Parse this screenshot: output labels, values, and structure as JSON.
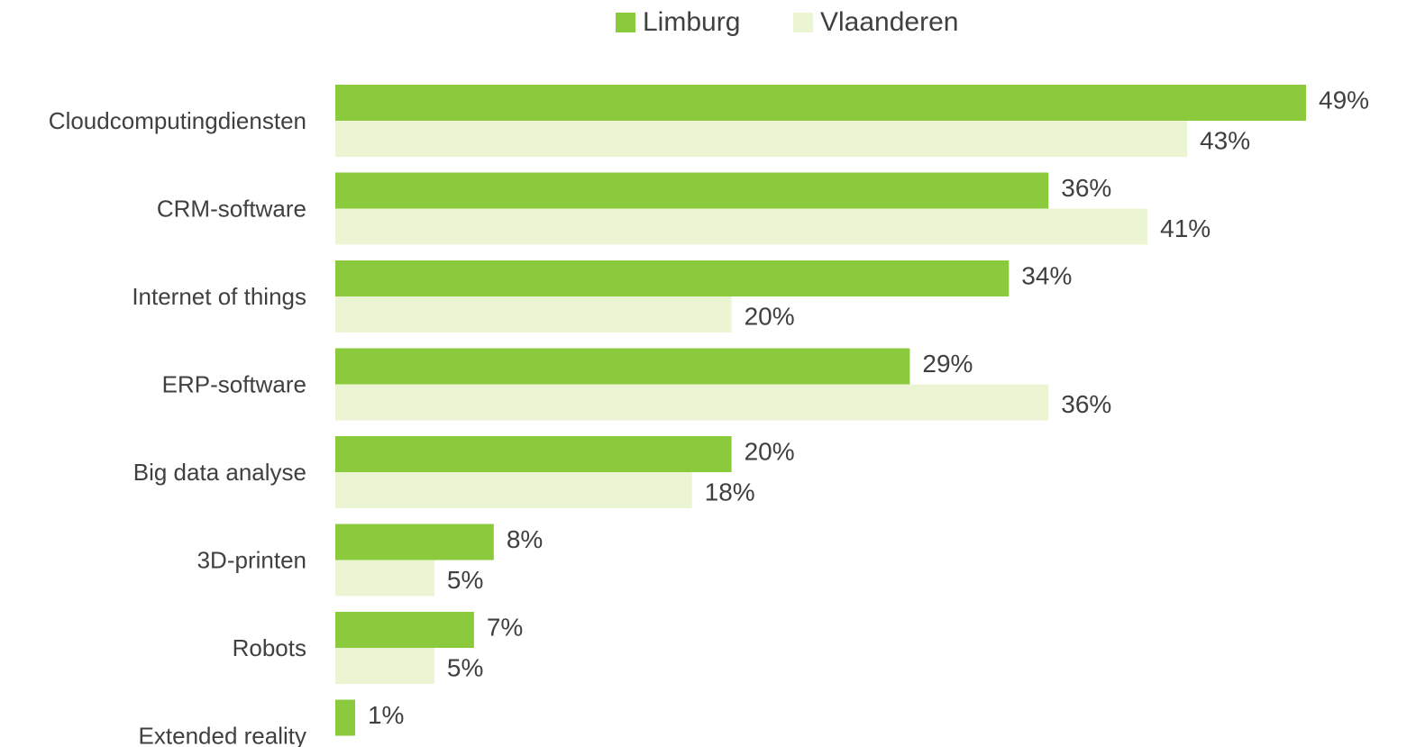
{
  "chart_data": {
    "type": "bar",
    "orientation": "horizontal",
    "categories": [
      "Cloudcomputingdiensten",
      "CRM-software",
      "Internet of things",
      "ERP-software",
      "Big data analyse",
      "3D-printen",
      "Robots",
      "Extended reality"
    ],
    "series": [
      {
        "name": "Limburg",
        "color": "#8aca3c",
        "values": [
          49,
          36,
          34,
          29,
          20,
          8,
          7,
          1
        ],
        "value_labels": [
          "49%",
          "36%",
          "34%",
          "29%",
          "20%",
          "8%",
          "7%",
          "1%"
        ]
      },
      {
        "name": "Vlaanderen",
        "color": "#ebf5d3",
        "values": [
          43,
          41,
          20,
          36,
          18,
          5,
          5,
          null
        ],
        "value_labels": [
          "43%",
          "41%",
          "20%",
          "36%",
          "18%",
          "5%",
          "5%",
          null
        ]
      }
    ],
    "legend": "top"
  }
}
